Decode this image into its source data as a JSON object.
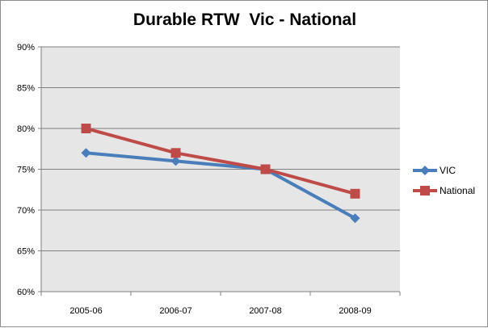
{
  "chart_data": {
    "type": "line",
    "title": "Durable RTW  Vic - National",
    "xlabel": "",
    "ylabel": "",
    "categories": [
      "2005-06",
      "2006-07",
      "2007-08",
      "2008-09"
    ],
    "ylim": [
      0.6,
      0.9
    ],
    "yticks": [
      0.6,
      0.65,
      0.7,
      0.75,
      0.8,
      0.85,
      0.9
    ],
    "ytick_labels": [
      "60%",
      "65%",
      "70%",
      "75%",
      "80%",
      "85%",
      "90%"
    ],
    "grid": true,
    "legend_position": "right",
    "series": [
      {
        "name": "VIC",
        "values": [
          0.77,
          0.76,
          0.75,
          0.69
        ],
        "color": "#4a7ebb",
        "marker": "diamond"
      },
      {
        "name": "National",
        "values": [
          0.8,
          0.77,
          0.75,
          0.72
        ],
        "color": "#be4b48",
        "marker": "square"
      }
    ]
  }
}
